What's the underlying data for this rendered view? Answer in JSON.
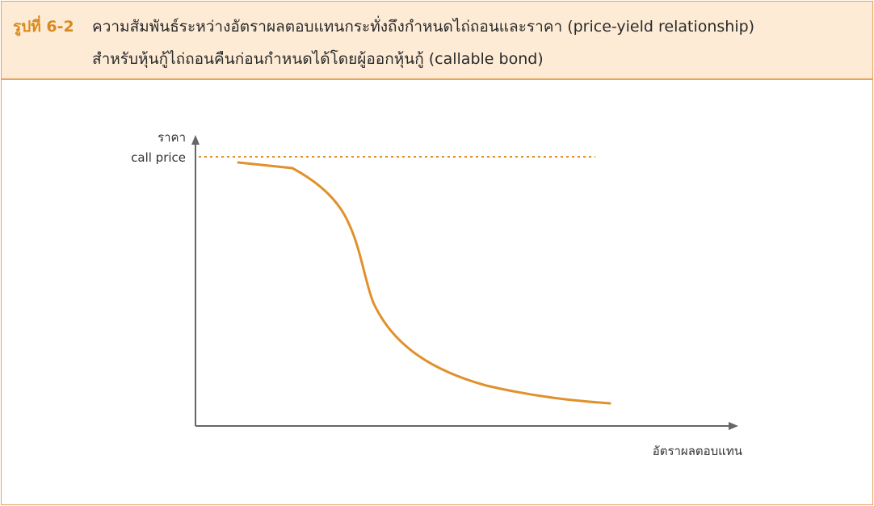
{
  "caption": {
    "figure_label": "รูปที่ 6-2",
    "line1": "ความสัมพันธ์ระหว่างอัตราผลตอบแทนกระทั่งถึงกำหนดไถ่ถอนและราคา (price-yield relationship)",
    "line2": "สำหรับหุ้นกู้ไถ่ถอนคืนก่อนกำหนดได้โดยผู้ออกหุ้นกู้ (callable bond)"
  },
  "chart": {
    "y_axis_label": "ราคา",
    "call_price_label": "call price",
    "x_axis_label": "อัตราผลตอบแทน",
    "colors": {
      "curve": "#e0912c",
      "call_price_line": "#e0912c",
      "axis": "#666666"
    }
  }
}
